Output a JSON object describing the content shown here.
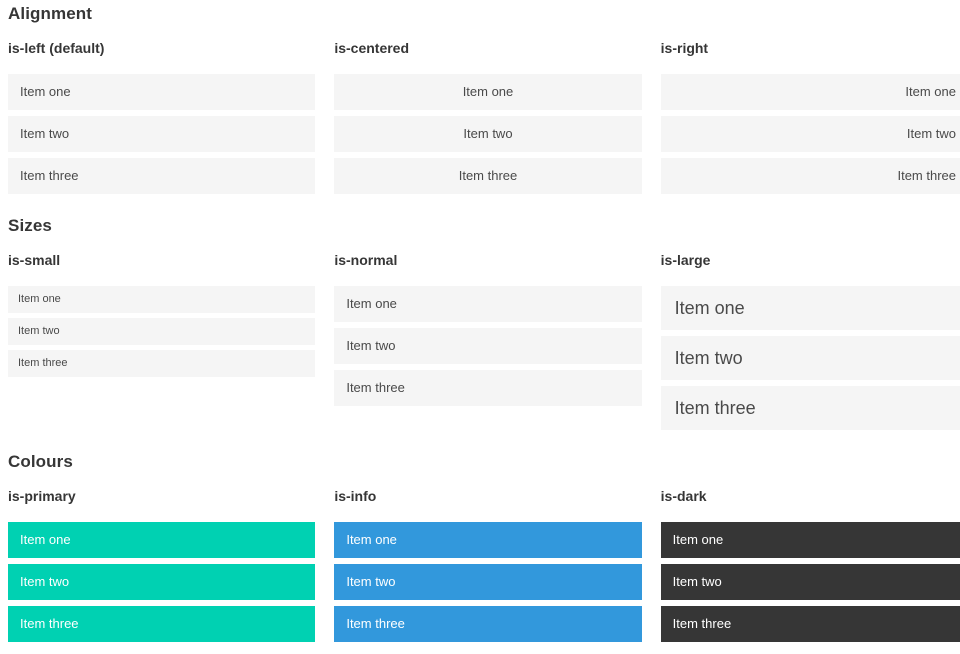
{
  "colors": {
    "item_bg": "#f5f5f5",
    "item_text": "#4a4a4a",
    "heading_text": "#363636",
    "primary": "#00d1b2",
    "info": "#3298dc",
    "dark": "#363636",
    "colored_text": "#ffffff",
    "page_bg": "#ffffff"
  },
  "sections": [
    {
      "title": "Alignment",
      "columns": [
        {
          "subtitle": "is-left (default)",
          "items": [
            "Item one",
            "Item two",
            "Item three"
          ]
        },
        {
          "subtitle": "is-centered",
          "items": [
            "Item one",
            "Item two",
            "Item three"
          ]
        },
        {
          "subtitle": "is-right",
          "items": [
            "Item one",
            "Item two",
            "Item three"
          ]
        }
      ]
    },
    {
      "title": "Sizes",
      "columns": [
        {
          "subtitle": "is-small",
          "items": [
            "Item one",
            "Item two",
            "Item three"
          ]
        },
        {
          "subtitle": "is-normal",
          "items": [
            "Item one",
            "Item two",
            "Item three"
          ]
        },
        {
          "subtitle": "is-large",
          "items": [
            "Item one",
            "Item two",
            "Item three"
          ]
        }
      ]
    },
    {
      "title": "Colours",
      "columns": [
        {
          "subtitle": "is-primary",
          "items": [
            "Item one",
            "Item two",
            "Item three"
          ]
        },
        {
          "subtitle": "is-info",
          "items": [
            "Item one",
            "Item two",
            "Item three"
          ]
        },
        {
          "subtitle": "is-dark",
          "items": [
            "Item one",
            "Item two",
            "Item three"
          ]
        }
      ]
    }
  ]
}
